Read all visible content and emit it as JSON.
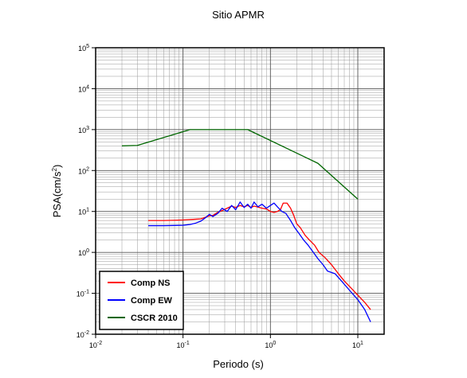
{
  "chart_data": {
    "type": "line",
    "title": "Sitio APMR",
    "xlabel": "Periodo (s)",
    "ylabel": "PSA(cm/s²)",
    "ylabel_parts": {
      "main": "PSA(cm/s",
      "exp": "2",
      "close": ")"
    },
    "xscale": "log",
    "yscale": "log",
    "xlim": [
      0.01,
      20
    ],
    "ylim": [
      0.01,
      100000
    ],
    "grid": true,
    "legend_position": "bottom-left",
    "x_ticks": [
      {
        "base": "10",
        "exp": "-2",
        "value": 0.01
      },
      {
        "base": "10",
        "exp": "-1",
        "value": 0.1
      },
      {
        "base": "10",
        "exp": "0",
        "value": 1
      },
      {
        "base": "10",
        "exp": "1",
        "value": 10
      }
    ],
    "y_ticks": [
      {
        "base": "10",
        "exp": "-2",
        "value": 0.01
      },
      {
        "base": "10",
        "exp": "-1",
        "value": 0.1
      },
      {
        "base": "10",
        "exp": "0",
        "value": 1
      },
      {
        "base": "10",
        "exp": "1",
        "value": 10
      },
      {
        "base": "10",
        "exp": "2",
        "value": 100
      },
      {
        "base": "10",
        "exp": "3",
        "value": 1000
      },
      {
        "base": "10",
        "exp": "4",
        "value": 10000
      },
      {
        "base": "10",
        "exp": "5",
        "value": 100000
      }
    ],
    "series": [
      {
        "name": "Comp NS",
        "color": "#ff0000",
        "points": [
          [
            0.04,
            6.0
          ],
          [
            0.06,
            6.0
          ],
          [
            0.08,
            6.1
          ],
          [
            0.1,
            6.2
          ],
          [
            0.13,
            6.4
          ],
          [
            0.16,
            6.6
          ],
          [
            0.18,
            7.2
          ],
          [
            0.2,
            7.8
          ],
          [
            0.22,
            8.0
          ],
          [
            0.25,
            9.5
          ],
          [
            0.28,
            10.5
          ],
          [
            0.32,
            12.0
          ],
          [
            0.36,
            13.5
          ],
          [
            0.4,
            12.5
          ],
          [
            0.45,
            14.0
          ],
          [
            0.5,
            13.0
          ],
          [
            0.55,
            14.0
          ],
          [
            0.6,
            12.5
          ],
          [
            0.65,
            13.5
          ],
          [
            0.7,
            13.0
          ],
          [
            0.8,
            12.0
          ],
          [
            0.9,
            11.5
          ],
          [
            1.0,
            10.0
          ],
          [
            1.1,
            9.5
          ],
          [
            1.2,
            10.0
          ],
          [
            1.3,
            11.0
          ],
          [
            1.4,
            16.0
          ],
          [
            1.55,
            16.0
          ],
          [
            1.7,
            12.0
          ],
          [
            1.85,
            8.0
          ],
          [
            2.0,
            5.0
          ],
          [
            2.2,
            4.0
          ],
          [
            2.5,
            2.6
          ],
          [
            2.8,
            2.0
          ],
          [
            3.2,
            1.5
          ],
          [
            3.6,
            1.0
          ],
          [
            4.2,
            0.75
          ],
          [
            5.0,
            0.5
          ],
          [
            6.0,
            0.3
          ],
          [
            7.0,
            0.2
          ],
          [
            8.5,
            0.13
          ],
          [
            10.0,
            0.09
          ],
          [
            12.0,
            0.06
          ],
          [
            14.0,
            0.04
          ]
        ]
      },
      {
        "name": "Comp EW",
        "color": "#0000ff",
        "points": [
          [
            0.04,
            4.5
          ],
          [
            0.06,
            4.5
          ],
          [
            0.08,
            4.55
          ],
          [
            0.1,
            4.6
          ],
          [
            0.12,
            4.8
          ],
          [
            0.14,
            5.2
          ],
          [
            0.16,
            5.8
          ],
          [
            0.18,
            7.0
          ],
          [
            0.2,
            8.5
          ],
          [
            0.22,
            7.5
          ],
          [
            0.25,
            9.0
          ],
          [
            0.28,
            12.0
          ],
          [
            0.32,
            10.0
          ],
          [
            0.36,
            14.0
          ],
          [
            0.4,
            11.0
          ],
          [
            0.45,
            17.0
          ],
          [
            0.5,
            12.5
          ],
          [
            0.55,
            15.0
          ],
          [
            0.6,
            12.0
          ],
          [
            0.65,
            17.0
          ],
          [
            0.72,
            13.0
          ],
          [
            0.8,
            15.0
          ],
          [
            0.9,
            12.0
          ],
          [
            1.0,
            14.0
          ],
          [
            1.1,
            16.0
          ],
          [
            1.2,
            13.0
          ],
          [
            1.35,
            10.0
          ],
          [
            1.5,
            9.0
          ],
          [
            1.7,
            6.0
          ],
          [
            1.9,
            4.0
          ],
          [
            2.1,
            3.0
          ],
          [
            2.4,
            2.0
          ],
          [
            2.7,
            1.5
          ],
          [
            3.0,
            1.1
          ],
          [
            3.5,
            0.7
          ],
          [
            4.0,
            0.5
          ],
          [
            4.5,
            0.35
          ],
          [
            5.5,
            0.3
          ],
          [
            6.5,
            0.2
          ],
          [
            8.0,
            0.12
          ],
          [
            10.0,
            0.07
          ],
          [
            12.0,
            0.04
          ],
          [
            14.0,
            0.02
          ]
        ]
      },
      {
        "name": "CSCR 2010",
        "color": "#006600",
        "points": [
          [
            0.02,
            400
          ],
          [
            0.03,
            410
          ],
          [
            0.12,
            1000
          ],
          [
            0.55,
            1000
          ],
          [
            3.5,
            150
          ],
          [
            10.0,
            20
          ]
        ]
      }
    ]
  }
}
